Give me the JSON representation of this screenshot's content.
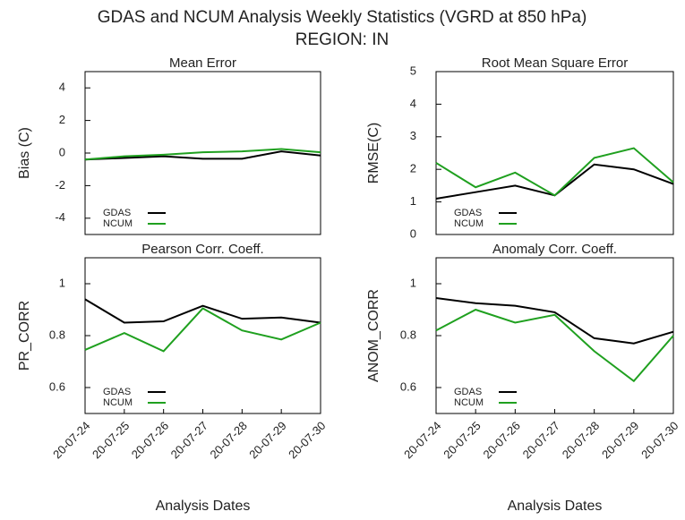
{
  "title": "GDAS and NCUM Analysis Weekly Statistics (VGRD at 850 hPa)",
  "subtitle": "REGION: IN",
  "chart_data": [
    {
      "type": "line",
      "title": "Mean Error",
      "y_label": "Bias (C)",
      "categories": [
        null,
        null,
        null,
        null,
        null,
        null,
        null
      ],
      "ylim": [
        -5,
        5
      ],
      "yticks": [
        -4,
        -2,
        0,
        2,
        4
      ],
      "legend": "lower left",
      "series": [
        {
          "name": "GDAS",
          "color": "#000000",
          "values": [
            -0.4,
            -0.3,
            -0.2,
            -0.35,
            -0.35,
            0.1,
            -0.15
          ]
        },
        {
          "name": "NCUM",
          "color": "#1fa01f",
          "values": [
            -0.4,
            -0.2,
            -0.1,
            0.05,
            0.1,
            0.25,
            0.05
          ]
        }
      ]
    },
    {
      "type": "line",
      "title": "Root Mean Square Error",
      "y_label": "RMSE(C)",
      "categories": [
        null,
        null,
        null,
        null,
        null,
        null,
        null
      ],
      "ylim": [
        0,
        5
      ],
      "yticks": [
        0,
        1,
        2,
        3,
        4,
        5
      ],
      "legend": "lower left",
      "series": [
        {
          "name": "GDAS",
          "color": "#000000",
          "values": [
            1.1,
            1.3,
            1.5,
            1.2,
            2.15,
            2.0,
            1.55
          ]
        },
        {
          "name": "NCUM",
          "color": "#1fa01f",
          "values": [
            2.2,
            1.45,
            1.9,
            1.2,
            2.35,
            2.65,
            1.6
          ]
        }
      ]
    },
    {
      "type": "line",
      "title": "Pearson Corr. Coeff.",
      "y_label": "PR_CORR",
      "x_label": "Analysis Dates",
      "categories": [
        "20-07-24",
        "20-07-25",
        "20-07-26",
        "20-07-27",
        "20-07-28",
        "20-07-29",
        "20-07-30"
      ],
      "ylim": [
        0.5,
        1.1
      ],
      "yticks": [
        0.6,
        0.8,
        1
      ],
      "legend": "lower left",
      "series": [
        {
          "name": "GDAS",
          "color": "#000000",
          "values": [
            0.94,
            0.85,
            0.855,
            0.915,
            0.865,
            0.87,
            0.85
          ]
        },
        {
          "name": "NCUM",
          "color": "#1fa01f",
          "values": [
            0.745,
            0.81,
            0.74,
            0.905,
            0.82,
            0.785,
            0.85
          ]
        }
      ]
    },
    {
      "type": "line",
      "title": "Anomaly Corr. Coeff.",
      "y_label": "ANOM_CORR",
      "x_label": "Analysis Dates",
      "categories": [
        "20-07-24",
        "20-07-25",
        "20-07-26",
        "20-07-27",
        "20-07-28",
        "20-07-29",
        "20-07-30"
      ],
      "ylim": [
        0.5,
        1.1
      ],
      "yticks": [
        0.6,
        0.8,
        1
      ],
      "legend": "lower left",
      "series": [
        {
          "name": "GDAS",
          "color": "#000000",
          "values": [
            0.945,
            0.925,
            0.915,
            0.89,
            0.79,
            0.77,
            0.815
          ]
        },
        {
          "name": "NCUM",
          "color": "#1fa01f",
          "values": [
            0.82,
            0.9,
            0.85,
            0.88,
            0.74,
            0.625,
            0.8
          ]
        }
      ]
    }
  ]
}
